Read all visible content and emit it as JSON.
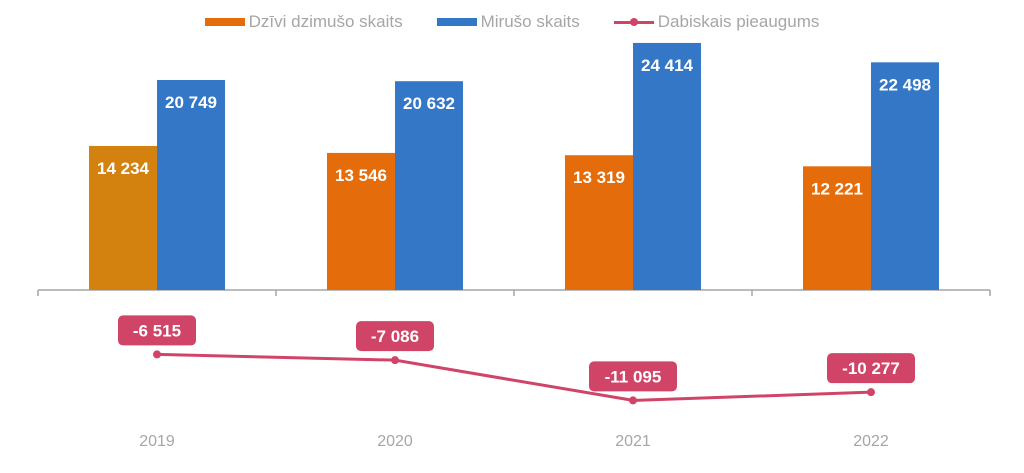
{
  "chart_data": {
    "type": "bar",
    "categories": [
      "2019",
      "2020",
      "2021",
      "2022"
    ],
    "series": [
      {
        "name": "Dzīvi dzimušo skaits",
        "type": "bar",
        "color": "#e46c0a",
        "values": [
          14234,
          13546,
          13319,
          12221
        ],
        "labels": [
          "14 234",
          "13 546",
          "13 319",
          "12 221"
        ]
      },
      {
        "name": "Mirušo skaits",
        "type": "bar",
        "color": "#3477c6",
        "values": [
          20749,
          20632,
          24414,
          22498
        ],
        "labels": [
          "20 749",
          "20 632",
          "24 414",
          "22 498"
        ]
      },
      {
        "name": "Dabiskais pieaugums",
        "type": "line",
        "color": "#d04468",
        "values": [
          -6515,
          -7086,
          -11095,
          -10277
        ],
        "labels": [
          "-6 515",
          "-7 086",
          "-11 095",
          "-10 277"
        ]
      }
    ],
    "highlight_color": "#d4820f",
    "legend_position": "top",
    "grid": false
  }
}
